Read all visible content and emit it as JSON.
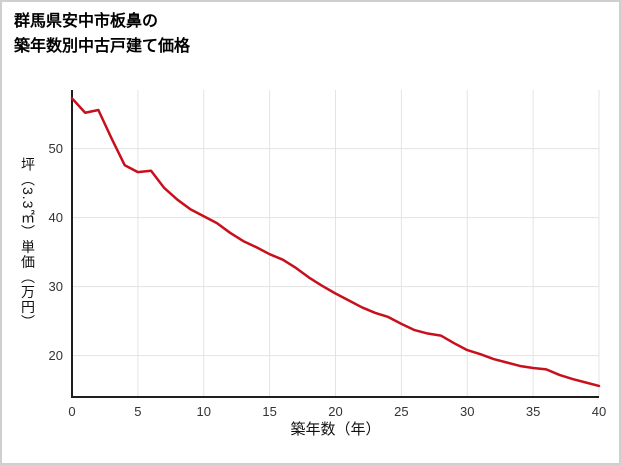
{
  "title": {
    "line1": "群馬県安中市板鼻の",
    "line2": "築年数別中古戸建て価格"
  },
  "chart_data": {
    "type": "line",
    "title": "群馬県安中市板鼻の築年数別中古戸建て価格",
    "xlabel": "築年数（年）",
    "ylabel": "坪（3.3㎡）単価（万円）",
    "x": [
      0,
      1,
      2,
      3,
      4,
      5,
      6,
      7,
      8,
      9,
      10,
      11,
      12,
      13,
      14,
      15,
      16,
      17,
      18,
      19,
      20,
      21,
      22,
      23,
      24,
      25,
      26,
      27,
      28,
      29,
      30,
      31,
      32,
      33,
      34,
      35,
      36,
      37,
      38,
      39,
      40
    ],
    "values": [
      57.3,
      55.2,
      55.6,
      51.5,
      47.6,
      46.6,
      46.8,
      44.3,
      42.6,
      41.2,
      40.2,
      39.2,
      37.8,
      36.6,
      35.7,
      34.7,
      33.9,
      32.7,
      31.3,
      30.1,
      29.0,
      28.0,
      27.0,
      26.2,
      25.6,
      24.6,
      23.7,
      23.2,
      22.9,
      21.8,
      20.8,
      20.2,
      19.5,
      19.0,
      18.5,
      18.2,
      18.0,
      17.2,
      16.6,
      16.1,
      15.6
    ],
    "xlim": [
      0,
      40
    ],
    "ylim": [
      14,
      58.5
    ],
    "xticks": [
      0,
      5,
      10,
      15,
      20,
      25,
      30,
      35,
      40
    ],
    "yticks": [
      20,
      30,
      40,
      50
    ],
    "grid": true,
    "legend": false,
    "line_color": "#c8101d",
    "grid_color": "#e3e3e3",
    "axis_color": "#1f1f1f",
    "tick_color": "#333333",
    "tick_font_size": 13
  }
}
